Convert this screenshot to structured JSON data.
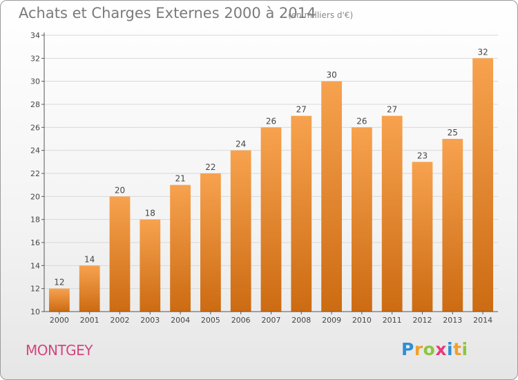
{
  "header": {
    "title": "Achats et Charges Externes 2000 à 2014",
    "subtitle": "(en milliers d'€)"
  },
  "footer": {
    "commune": "MONTGEY",
    "brand_letters": [
      {
        "char": "P",
        "color": "#2e8fd6"
      },
      {
        "char": "r",
        "color": "#f0a02a"
      },
      {
        "char": "o",
        "color": "#8cc63f"
      },
      {
        "char": "x",
        "color": "#e63b7a"
      },
      {
        "char": "i",
        "color": "#2e8fd6"
      },
      {
        "char": "t",
        "color": "#f0a02a"
      },
      {
        "char": "i",
        "color": "#8cc63f"
      }
    ]
  },
  "chart_data": {
    "type": "bar",
    "title": "Achats et Charges Externes 2000 à 2014",
    "subtitle": "(en milliers d'€)",
    "categories": [
      "2000",
      "2001",
      "2002",
      "2003",
      "2004",
      "2005",
      "2006",
      "2007",
      "2008",
      "2009",
      "2010",
      "2011",
      "2012",
      "2013",
      "2014"
    ],
    "values": [
      12,
      14,
      20,
      18,
      21,
      22,
      24,
      26,
      27,
      30,
      26,
      27,
      23,
      25,
      32
    ],
    "ylim": [
      10,
      34
    ],
    "yticks": [
      10,
      12,
      14,
      16,
      18,
      20,
      22,
      24,
      26,
      28,
      30,
      32,
      34
    ],
    "grid": true,
    "legend": "none",
    "colors": {
      "bar_light": "#f7a24f",
      "bar_dark": "#cc6b12",
      "grid": "#d8d8d8",
      "axis": "#555555"
    }
  }
}
